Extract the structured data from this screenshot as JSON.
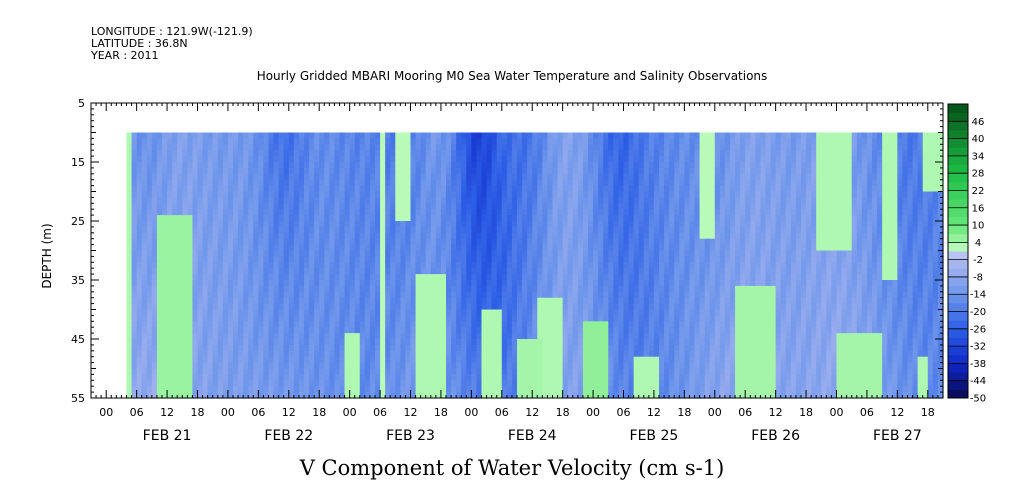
{
  "header": {
    "longitude": "LONGITUDE : 121.9W(-121.9)",
    "latitude": "LATITUDE : 36.8N",
    "year": "YEAR : 2011"
  },
  "chart_data": {
    "type": "heatmap",
    "title": "Hourly Gridded MBARI Mooring M0 Sea Water Temperature and Salinity Observations",
    "xlabel": "V Component of Water Velocity (cm s-1)",
    "ylabel": "DEPTH (m)",
    "y_ticks": [
      5,
      15,
      25,
      35,
      45,
      55
    ],
    "ylim": [
      55,
      5
    ],
    "y_data_range": [
      10,
      55
    ],
    "x_hour_ticks": [
      "00",
      "06",
      "12",
      "18",
      "00",
      "06",
      "12",
      "18",
      "00",
      "06",
      "12",
      "18",
      "00",
      "06",
      "12",
      "18",
      "00",
      "06",
      "12",
      "18",
      "00",
      "06",
      "12",
      "18",
      "00",
      "06",
      "12",
      "18"
    ],
    "x_day_labels": [
      "FEB 21",
      "FEB 22",
      "FEB 23",
      "FEB 24",
      "FEB 25",
      "FEB 26",
      "FEB 27"
    ],
    "x_range_hours": [
      -3,
      165
    ],
    "data_start_hour": 4,
    "colorbar_ticks": [
      46,
      40,
      34,
      28,
      22,
      16,
      10,
      4,
      -2,
      -8,
      -14,
      -20,
      -26,
      -32,
      -38,
      -44,
      -50
    ],
    "colorbar_range": [
      -50,
      52
    ],
    "positive_patches": [
      {
        "t0": 4,
        "t1": 5,
        "z0": 10,
        "z1": 55,
        "v": 3
      },
      {
        "t0": 10,
        "t1": 17,
        "z0": 24,
        "z1": 55,
        "v": 5
      },
      {
        "t0": 11,
        "t1": 14,
        "z0": 32,
        "z1": 55,
        "v": 8
      },
      {
        "t0": 47,
        "t1": 50,
        "z0": 44,
        "z1": 55,
        "v": 3
      },
      {
        "t0": 54,
        "t1": 55,
        "z0": 10,
        "z1": 55,
        "v": 2
      },
      {
        "t0": 57,
        "t1": 60,
        "z0": 10,
        "z1": 25,
        "v": 2
      },
      {
        "t0": 61,
        "t1": 67,
        "z0": 34,
        "z1": 55,
        "v": 3
      },
      {
        "t0": 74,
        "t1": 78,
        "z0": 40,
        "z1": 55,
        "v": 3
      },
      {
        "t0": 81,
        "t1": 86,
        "z0": 45,
        "z1": 55,
        "v": 4
      },
      {
        "t0": 85,
        "t1": 90,
        "z0": 38,
        "z1": 55,
        "v": 3
      },
      {
        "t0": 94,
        "t1": 99,
        "z0": 42,
        "z1": 55,
        "v": 6
      },
      {
        "t0": 104,
        "t1": 109,
        "z0": 48,
        "z1": 55,
        "v": 3
      },
      {
        "t0": 117,
        "t1": 120,
        "z0": 10,
        "z1": 28,
        "v": 2
      },
      {
        "t0": 124,
        "t1": 132,
        "z0": 36,
        "z1": 55,
        "v": 4
      },
      {
        "t0": 126,
        "t1": 130,
        "z0": 46,
        "z1": 55,
        "v": 9
      },
      {
        "t0": 140,
        "t1": 147,
        "z0": 10,
        "z1": 30,
        "v": 3
      },
      {
        "t0": 144,
        "t1": 153,
        "z0": 44,
        "z1": 55,
        "v": 4
      },
      {
        "t0": 153,
        "t1": 156,
        "z0": 10,
        "z1": 35,
        "v": 3
      },
      {
        "t0": 160,
        "t1": 162,
        "z0": 48,
        "z1": 55,
        "v": 3
      },
      {
        "t0": 161,
        "t1": 165,
        "z0": 10,
        "z1": 20,
        "v": 3
      }
    ]
  }
}
